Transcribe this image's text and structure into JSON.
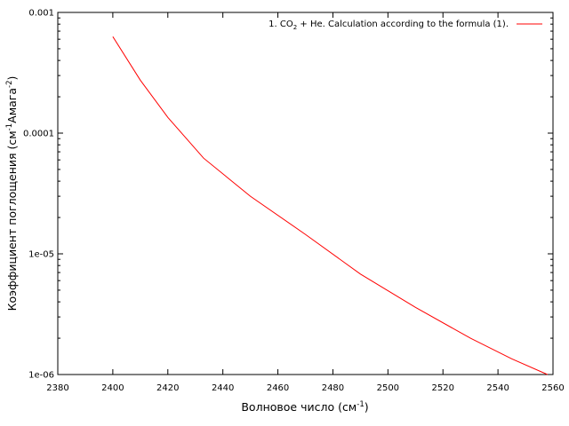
{
  "chart_data": {
    "type": "line",
    "title": "",
    "xlabel": {
      "main": "Волновое число (см",
      "sup": "-1",
      "close": ")"
    },
    "ylabel": {
      "p1": "Коэффициент поглощения (см",
      "sup1": "-1",
      "p2": "Амага",
      "sup2": "-2",
      "p3": ")"
    },
    "xlim": [
      2380,
      2560
    ],
    "ylim": [
      1e-06,
      0.001
    ],
    "yscale": "log",
    "grid": false,
    "legend_position": "top-right",
    "x_ticks": [
      2380,
      2400,
      2420,
      2440,
      2460,
      2480,
      2500,
      2520,
      2540,
      2560
    ],
    "x_tick_labels": [
      "2380",
      "2400",
      "2420",
      "2440",
      "2460",
      "2480",
      "2500",
      "2520",
      "2540",
      "2560"
    ],
    "y_ticks": [
      1e-06,
      1e-05,
      0.0001,
      0.001
    ],
    "y_tick_labels": [
      "1e-06",
      "1e-05",
      "0.0001",
      "0.001"
    ],
    "series": [
      {
        "name": "1. CO2 + He. Calculation according to the formula (1).",
        "legend_parts": {
          "pre": "1. CO",
          "sub": "2",
          "post": " + He. Calculation according to the formula (1)."
        },
        "color": "#ff0000",
        "x": [
          2400,
          2410,
          2420,
          2433,
          2450,
          2470,
          2490,
          2510,
          2530,
          2545,
          2558
        ],
        "y": [
          0.00063,
          0.000275,
          0.000135,
          6.2e-05,
          3e-05,
          1.45e-05,
          6.8e-06,
          3.6e-06,
          2e-06,
          1.35e-06,
          1e-06
        ]
      }
    ]
  }
}
